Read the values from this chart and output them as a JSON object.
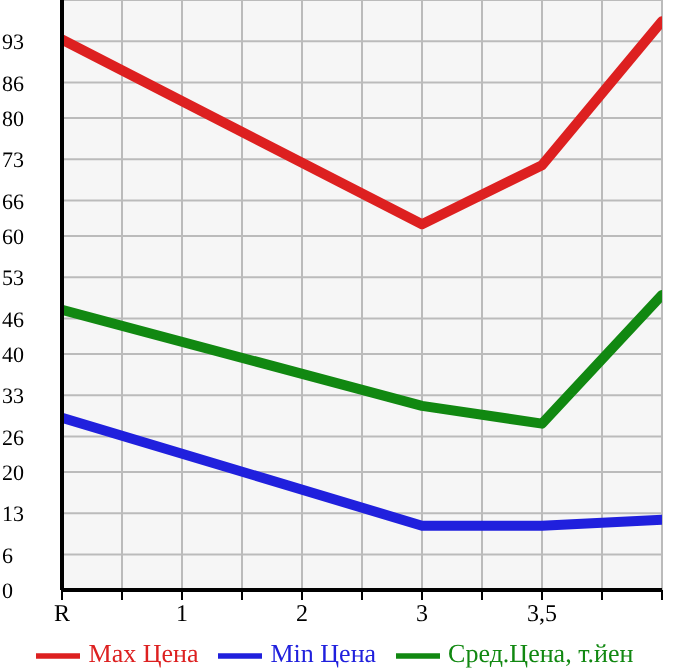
{
  "chart_data": {
    "type": "line",
    "categories": [
      "R",
      "1",
      "2",
      "3",
      "3,5",
      null
    ],
    "series": [
      {
        "name": "Max Цена",
        "color": "#dd2020",
        "values": [
          93.3,
          null,
          null,
          62,
          72,
          96.4
        ]
      },
      {
        "name": "Min Цена",
        "color": "#2020dd",
        "values": [
          29.2,
          null,
          null,
          10.9,
          10.9,
          11.9
        ]
      },
      {
        "name": "Сред.Цена, т.йен",
        "color": "#118811",
        "values": [
          47.5,
          null,
          null,
          31.2,
          28.2,
          50
        ]
      }
    ],
    "ylim": [
      0,
      100
    ],
    "yticks": [
      0,
      6,
      13,
      20,
      26,
      33,
      40,
      46,
      53,
      60,
      66,
      73,
      80,
      86,
      93
    ],
    "grid": true,
    "legend": "bottom",
    "marker": "none"
  }
}
